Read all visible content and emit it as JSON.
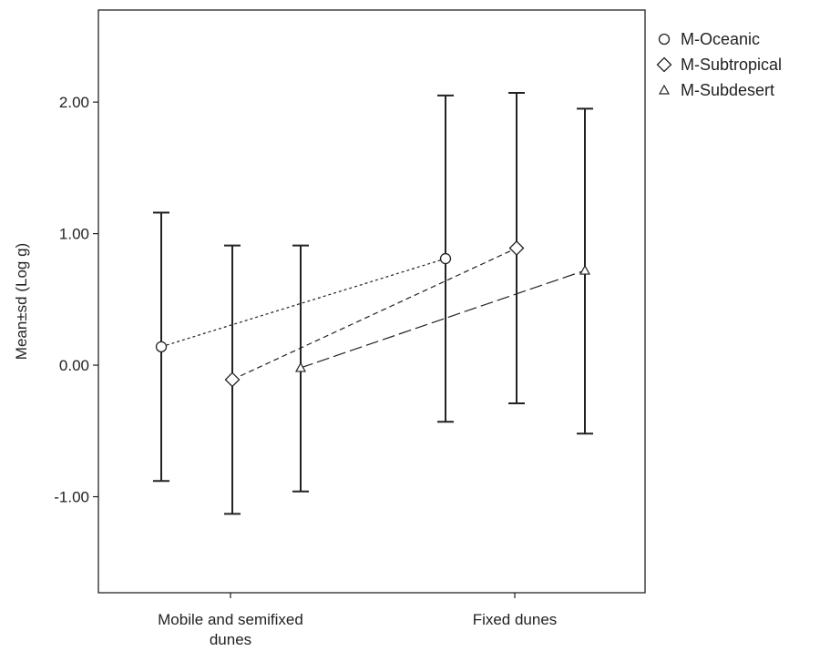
{
  "chart_data": {
    "type": "scatter",
    "categories": [
      "Mobile and semifixed dunes",
      "Fixed dunes"
    ],
    "category_label_lines": [
      [
        "Mobile and semifixed",
        "dunes"
      ],
      [
        "Fixed dunes"
      ]
    ],
    "xlabel": "",
    "ylabel": "Mean±sd (Log g)",
    "ylim": [
      -1.73,
      2.7
    ],
    "yticks": [
      -1.0,
      0.0,
      1.0,
      2.0
    ],
    "ytick_labels": [
      "-1.00",
      "0.00",
      "1.00",
      "2.00"
    ],
    "grid": false,
    "legend_position": "top-right, outside plot",
    "series": [
      {
        "name": "M-Oceanic",
        "marker": "circle",
        "line_style": "dotted",
        "means": [
          0.14,
          0.81
        ],
        "upper": [
          1.16,
          2.05
        ],
        "lower": [
          -0.88,
          -0.43
        ]
      },
      {
        "name": "M-Subtropical",
        "marker": "diamond",
        "line_style": "dashed",
        "means": [
          -0.11,
          0.89
        ],
        "upper": [
          0.91,
          2.07
        ],
        "lower": [
          -1.13,
          -0.29
        ]
      },
      {
        "name": "M-Subdesert",
        "marker": "triangle",
        "line_style": "long-dashed",
        "means": [
          -0.02,
          0.72
        ],
        "upper": [
          0.91,
          1.95
        ],
        "lower": [
          -0.96,
          -0.52
        ]
      }
    ]
  }
}
